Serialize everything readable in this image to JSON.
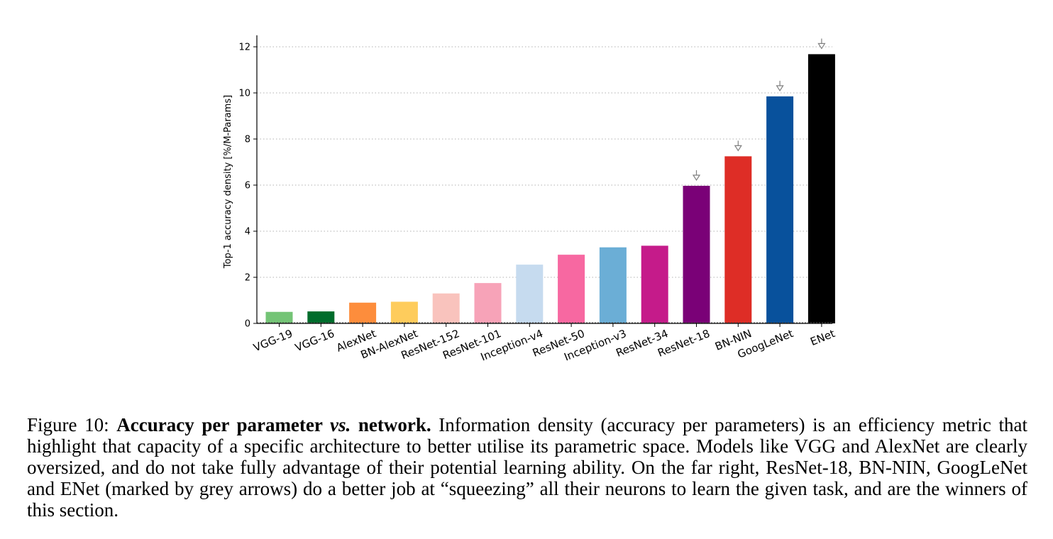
{
  "chart_data": {
    "type": "bar",
    "ylabel": "Top-1 accuracy density [%/M-Params]",
    "ylim": [
      0,
      12.5
    ],
    "yticks": [
      0,
      2,
      4,
      6,
      8,
      10,
      12
    ],
    "grid": "horizontal dotted",
    "categories": [
      "VGG-19",
      "VGG-16",
      "AlexNet",
      "BN-AlexNet",
      "ResNet-152",
      "ResNet-101",
      "Inception-v4",
      "ResNet-50",
      "Inception-v3",
      "ResNet-34",
      "ResNet-18",
      "BN-NIN",
      "GoogLeNet",
      "ENet"
    ],
    "values": [
      0.5,
      0.52,
      0.9,
      0.94,
      1.3,
      1.75,
      2.55,
      2.98,
      3.3,
      3.37,
      5.97,
      7.25,
      9.85,
      11.68
    ],
    "colors": [
      "#74c476",
      "#006d2c",
      "#fd8d3c",
      "#fecc5c",
      "#f9c3bd",
      "#f7a3b8",
      "#c6dbef",
      "#f768a1",
      "#6baed6",
      "#c51b8a",
      "#7a0177",
      "#de2d26",
      "#08519c",
      "#000000"
    ],
    "marked": [
      "ResNet-18",
      "BN-NIN",
      "GoogLeNet",
      "ENet"
    ],
    "marker_color": "#808080"
  },
  "caption": {
    "label": "Figure 10: ",
    "title_part1": "Accuracy per parameter ",
    "title_vs": "vs.",
    "title_part2": " network.",
    "text": " Information density (accuracy per parameters) is an efficiency metric that highlight that capacity of a specific architecture to better utilise its parametric space. Models like VGG and AlexNet are clearly oversized, and do not take fully advantage of their potential learning ability. On the far right, ResNet-18, BN-NIN, GoogLeNet and ENet (marked by grey arrows) do a better job at “squeezing” all their neurons to learn the given task, and are the winners of this section."
  }
}
